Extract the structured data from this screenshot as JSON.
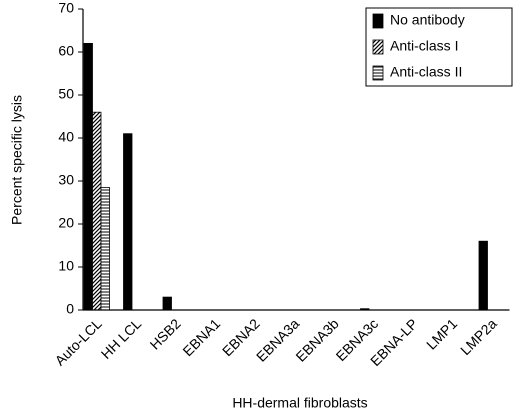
{
  "chart_data": {
    "type": "bar",
    "x_label": "HH-dermal fibroblasts",
    "y_label": "Percent specific lysis",
    "categories": [
      "Auto-LCL",
      "HH LCL",
      "HSB2",
      "EBNA1",
      "EBNA2",
      "EBNA3a",
      "EBNA3b",
      "EBNA3c",
      "EBNA-LP",
      "LMP1",
      "LMP2a"
    ],
    "series": [
      {
        "name": "No antibody",
        "color": "#000000",
        "pattern": "solid",
        "values": [
          62,
          41,
          3,
          0,
          0,
          0,
          0,
          0.3,
          0,
          0,
          16
        ]
      },
      {
        "name": "Anti-class I",
        "color": "#000000",
        "pattern": "diagonal",
        "values": [
          46,
          null,
          null,
          null,
          null,
          null,
          null,
          null,
          null,
          null,
          null
        ]
      },
      {
        "name": "Anti-class II",
        "color": "#000000",
        "pattern": "horizontal",
        "values": [
          28.5,
          null,
          null,
          null,
          null,
          null,
          null,
          null,
          null,
          null,
          null
        ]
      }
    ],
    "ylim": [
      0,
      70
    ],
    "yticks": [
      0,
      10,
      20,
      30,
      40,
      50,
      60,
      70
    ],
    "grid": false,
    "legend": "top-right"
  }
}
